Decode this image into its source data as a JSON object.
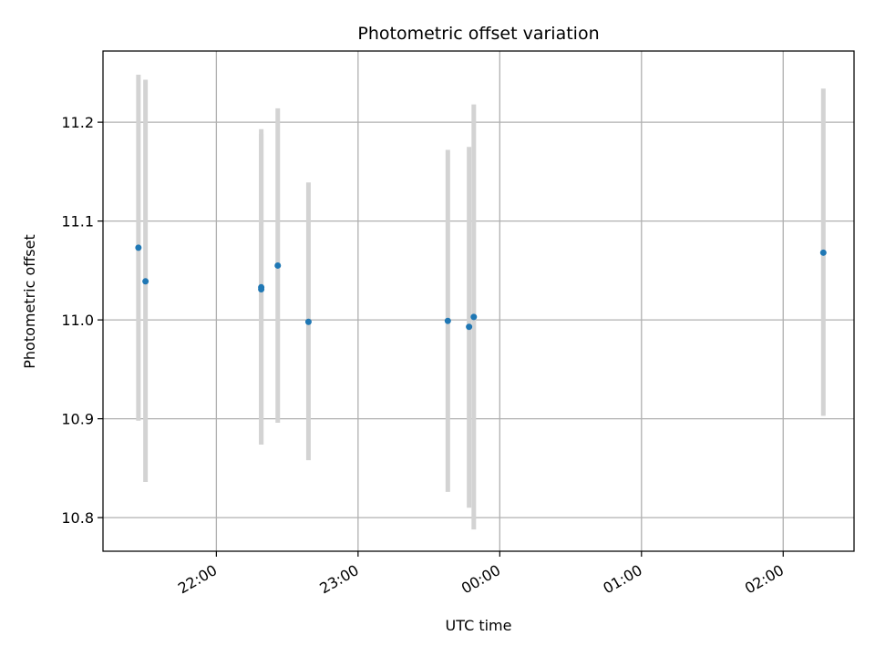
{
  "chart_data": {
    "type": "scatter",
    "title": "Photometric offset variation",
    "xlabel": "UTC time",
    "ylabel": "Photometric offset",
    "xlim": [
      "21:12",
      "02:30"
    ],
    "ylim": [
      10.766,
      11.272
    ],
    "x_ticks": [
      "22:00",
      "23:00",
      "00:00",
      "01:00",
      "02:00"
    ],
    "y_ticks": [
      "10.8",
      "10.9",
      "11.0",
      "11.1",
      "11.2"
    ],
    "grid": true,
    "points": [
      {
        "x": "21:27",
        "y": 11.073,
        "yerr_low": 10.898,
        "yerr_high": 11.248
      },
      {
        "x": "21:30",
        "y": 11.039,
        "yerr_low": 10.836,
        "yerr_high": 11.243
      },
      {
        "x": "22:19",
        "y": 11.033,
        "yerr_low": 10.874,
        "yerr_high": 11.193
      },
      {
        "x": "22:19",
        "y": 11.031,
        "yerr_low": 10.874,
        "yerr_high": 11.188
      },
      {
        "x": "22:26",
        "y": 11.055,
        "yerr_low": 10.896,
        "yerr_high": 11.214
      },
      {
        "x": "22:39",
        "y": 10.998,
        "yerr_low": 10.858,
        "yerr_high": 11.139
      },
      {
        "x": "23:38",
        "y": 10.999,
        "yerr_low": 10.826,
        "yerr_high": 11.172
      },
      {
        "x": "23:47",
        "y": 10.993,
        "yerr_low": 10.81,
        "yerr_high": 11.175
      },
      {
        "x": "23:49",
        "y": 11.003,
        "yerr_low": 10.788,
        "yerr_high": 11.218
      },
      {
        "x": "02:17",
        "y": 11.068,
        "yerr_low": 10.903,
        "yerr_high": 11.234
      }
    ],
    "marker_color": "#1f77b4",
    "errorbar_color": "#d3d3d3",
    "grid_color": "#b0b0b0"
  }
}
